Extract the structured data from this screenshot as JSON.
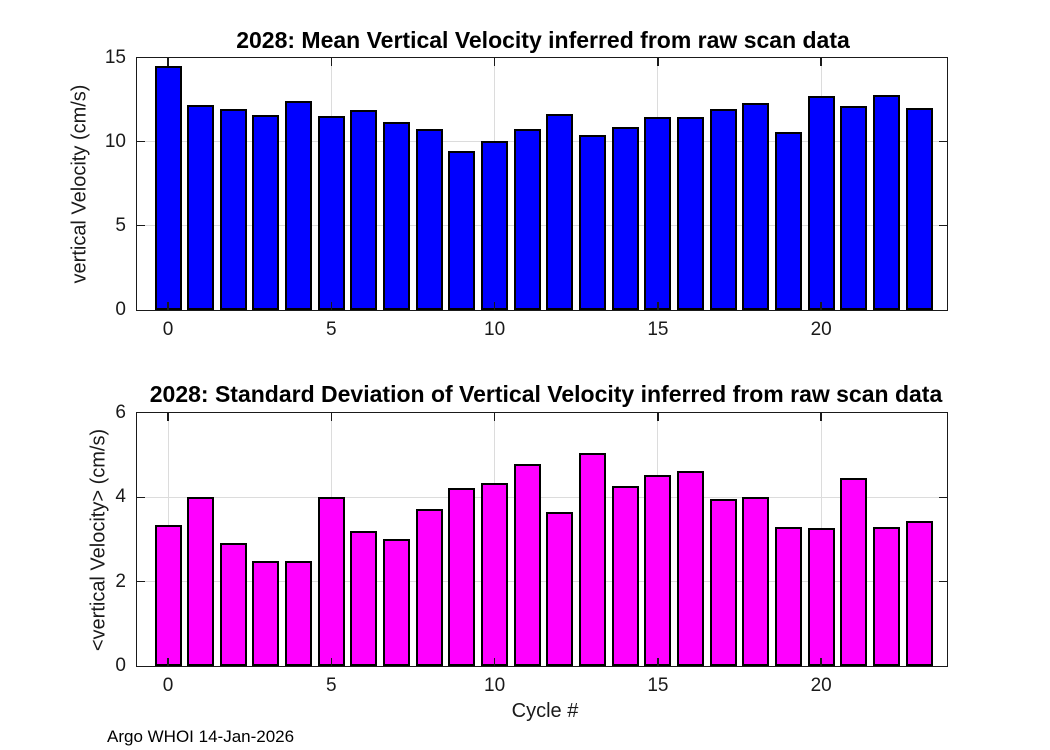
{
  "figure": {
    "background": "#ffffff",
    "footer_text": "Argo WHOI 14-Jan-2026"
  },
  "colors": {
    "bar_blue": "#0000ff",
    "bar_magenta": "#ff00ff",
    "bar_edge": "#000000",
    "axis": "#1a1a1a",
    "grid": "#dcdcdc",
    "title_text": "#000000",
    "tick_text": "#1a1a1a"
  },
  "chart_data": [
    {
      "type": "bar",
      "title": "2028: Mean Vertical Velocity inferred from raw scan data",
      "xlabel": "",
      "ylabel": "vertical Velocity (cm/s)",
      "categories": [
        0,
        1,
        2,
        3,
        4,
        5,
        6,
        7,
        8,
        9,
        10,
        11,
        12,
        13,
        14,
        15,
        16,
        17,
        18,
        19,
        20,
        21,
        22,
        23
      ],
      "values": [
        14.5,
        12.2,
        11.95,
        11.55,
        12.4,
        11.5,
        11.9,
        11.15,
        10.75,
        9.45,
        10.05,
        10.75,
        11.65,
        10.4,
        10.85,
        11.45,
        11.45,
        11.95,
        12.3,
        10.55,
        12.7,
        12.1,
        12.75,
        12.0
      ],
      "ylim": [
        0,
        15
      ],
      "yticks": [
        0,
        5,
        10,
        15
      ],
      "xticks": [
        0,
        5,
        10,
        15,
        20
      ],
      "xlim": [
        -0.95,
        23.85
      ],
      "bar_color": "#0000ff",
      "grid": true,
      "legend": "none"
    },
    {
      "type": "bar",
      "title": "2028: Standard Deviation of Vertical Velocity inferred from raw scan data",
      "xlabel": "Cycle #",
      "ylabel": "<vertical Velocity> (cm/s)",
      "categories": [
        0,
        1,
        2,
        3,
        4,
        5,
        6,
        7,
        8,
        9,
        10,
        11,
        12,
        13,
        14,
        15,
        16,
        17,
        18,
        19,
        20,
        21,
        22,
        23
      ],
      "values": [
        3.35,
        4.02,
        2.92,
        2.5,
        2.5,
        4.0,
        3.2,
        3.02,
        3.73,
        4.22,
        4.35,
        4.8,
        3.66,
        5.05,
        4.27,
        4.52,
        4.63,
        3.95,
        4.0,
        3.3,
        3.27,
        4.46,
        3.3,
        3.43
      ],
      "ylim": [
        0,
        6
      ],
      "yticks": [
        0,
        2,
        4,
        6
      ],
      "xticks": [
        0,
        5,
        10,
        15,
        20
      ],
      "xlim": [
        -0.95,
        23.85
      ],
      "bar_color": "#ff00ff",
      "grid": true,
      "legend": "none"
    }
  ]
}
